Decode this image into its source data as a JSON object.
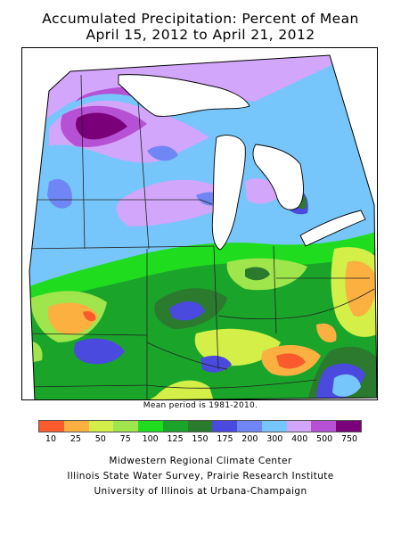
{
  "title_line1": "Accumulated Precipitation: Percent of Mean",
  "title_line2": "April 15, 2012 to April 21, 2012",
  "mean_period": "Mean period is 1981-2010.",
  "legend": {
    "labels": [
      "10",
      "25",
      "50",
      "75",
      "100",
      "125",
      "150",
      "175",
      "200",
      "300",
      "400",
      "500",
      "750"
    ],
    "colors": [
      "#fb5a2c",
      "#fbb040",
      "#d3ef48",
      "#9fe64c",
      "#1fdc1f",
      "#1aa52a",
      "#2b7a2e",
      "#4a4ade",
      "#6f86f4",
      "#77c6fb",
      "#d2a6fb",
      "#b650d4",
      "#7a007a"
    ]
  },
  "credits": [
    "Midwestern Regional Climate Center",
    "Illinois State Water Survey, Prairie Research Institute",
    "University of Illinois at Urbana-Champaign"
  ]
}
